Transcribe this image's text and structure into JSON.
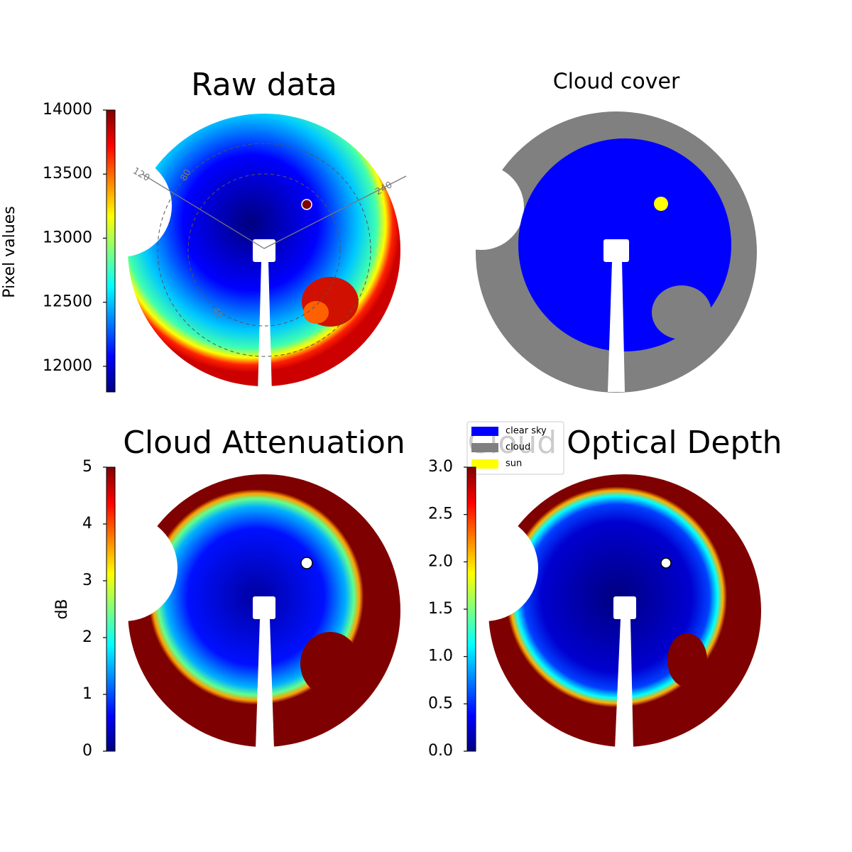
{
  "chart_data": [
    {
      "type": "image",
      "title": "Raw data",
      "ylabel": "Pixel values",
      "colormap": "jet",
      "ylim": [
        11800,
        14000
      ],
      "yticks": [
        12000,
        12500,
        13000,
        13500,
        14000
      ],
      "annotations": [
        "120",
        "80",
        "240",
        "40"
      ]
    },
    {
      "type": "categorical-image",
      "title": "Cloud cover",
      "series": [
        {
          "name": "clear sky",
          "color": "#0000ff"
        },
        {
          "name": "cloud",
          "color": "#808080"
        },
        {
          "name": "sun",
          "color": "#ffff00"
        }
      ]
    },
    {
      "type": "image",
      "title": "Cloud Attenuation",
      "ylabel": "dB",
      "colormap": "jet",
      "ylim": [
        0,
        5
      ],
      "yticks": [
        0,
        1,
        2,
        3,
        4,
        5
      ]
    },
    {
      "type": "image",
      "title": "Cloud Optical Depth",
      "colormap": "jet",
      "ylim": [
        0,
        3
      ],
      "yticks": [
        {
          "value": 0,
          "label": "0.0"
        },
        {
          "value": 0.5,
          "label": "0.5"
        },
        {
          "value": 1,
          "label": "1.0"
        },
        {
          "value": 1.5,
          "label": "1.5"
        },
        {
          "value": 2,
          "label": "2.0"
        },
        {
          "value": 2.5,
          "label": "2.5"
        },
        {
          "value": 3,
          "label": "3.0"
        }
      ]
    }
  ]
}
